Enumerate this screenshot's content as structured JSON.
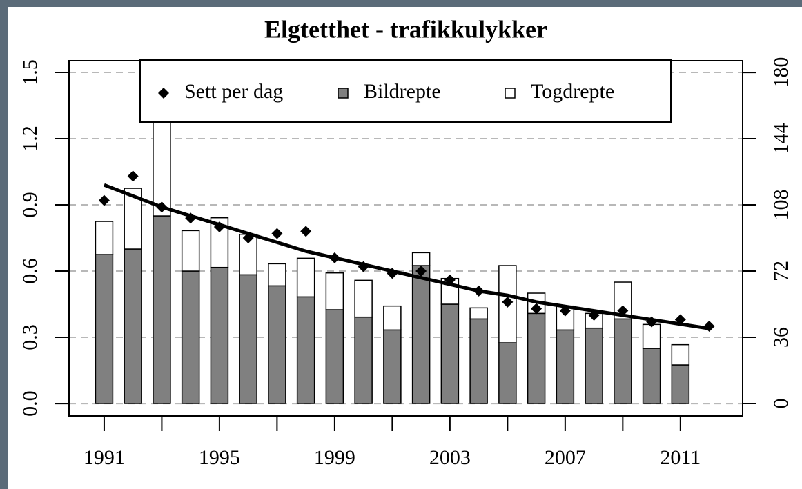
{
  "chart_data": {
    "type": "bar",
    "title": "Elgtetthet - trafikkulykker",
    "x": [
      1991,
      1992,
      1993,
      1994,
      1995,
      1996,
      1997,
      1998,
      1999,
      2000,
      2001,
      2002,
      2003,
      2004,
      2005,
      2006,
      2007,
      2008,
      2009,
      2010,
      2011,
      2012
    ],
    "series": [
      {
        "name": "Sett per dag",
        "type": "scatter",
        "marker": "diamond",
        "color": "#000000",
        "values": [
          0.92,
          1.03,
          0.89,
          0.84,
          0.8,
          0.75,
          0.77,
          0.78,
          0.66,
          0.62,
          0.59,
          0.6,
          0.56,
          0.51,
          0.46,
          0.43,
          0.42,
          0.4,
          0.42,
          0.37,
          0.38,
          0.35
        ]
      },
      {
        "name": "Bildrepte",
        "type": "bar",
        "axis": "y2",
        "color": "#808080",
        "values": [
          81,
          84,
          102,
          72,
          74,
          70,
          64,
          58,
          51,
          47,
          40,
          75,
          54,
          46,
          33,
          49,
          40,
          41,
          46,
          30,
          21,
          null
        ]
      },
      {
        "name": "Togdrepte",
        "type": "bar",
        "axis": "y2",
        "color": "#ffffff",
        "values": [
          18,
          33,
          58,
          22,
          27,
          22,
          12,
          21,
          20,
          20,
          13,
          7,
          14,
          6,
          42,
          11,
          13,
          8,
          20,
          13,
          11,
          null
        ]
      },
      {
        "type": "line",
        "color": "#000000",
        "values": [
          0.99,
          0.94,
          0.89,
          0.85,
          0.81,
          0.77,
          0.73,
          0.69,
          0.66,
          0.63,
          0.6,
          0.57,
          0.54,
          0.51,
          0.49,
          0.46,
          0.44,
          0.42,
          0.4,
          0.38,
          0.36,
          0.34
        ]
      }
    ],
    "xlim": [
      1989.78,
      2013.16
    ],
    "xticks": [
      1991,
      1995,
      1999,
      2003,
      2007,
      2011
    ],
    "xminor_ticks": [
      1993,
      1997,
      2001,
      2005,
      2009
    ],
    "ylim": [
      -0.056,
      1.553
    ],
    "yticks": [
      {
        "value": 0,
        "label": "0.0"
      },
      0.3,
      0.6,
      0.9,
      1.2,
      1.5
    ],
    "y2lim": [
      -6.75,
      186.4
    ],
    "y2ticks": [
      0,
      36,
      72,
      108,
      144,
      180
    ],
    "grid": true,
    "legend": "top"
  }
}
